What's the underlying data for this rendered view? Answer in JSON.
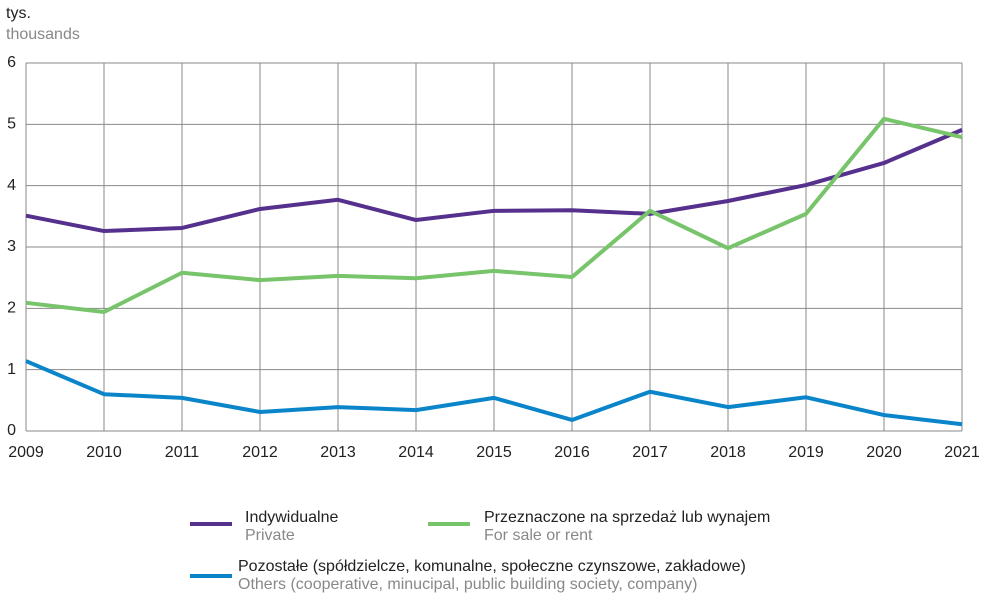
{
  "chart_data": {
    "type": "line",
    "y_label": "tys.",
    "y_label_en": "thousands",
    "categories": [
      "2009",
      "2010",
      "2011",
      "2012",
      "2013",
      "2014",
      "2015",
      "2016",
      "2017",
      "2018",
      "2019",
      "2020",
      "2021"
    ],
    "series": [
      {
        "name": "Indywidualne",
        "name_en": "Private",
        "color": "#55308d",
        "values": [
          3.51,
          3.26,
          3.31,
          3.62,
          3.77,
          3.44,
          3.59,
          3.6,
          3.54,
          3.75,
          4.01,
          4.37,
          4.91
        ]
      },
      {
        "name": "Przeznaczone na sprzedaż lub wynajem",
        "name_en": "For sale or rent",
        "color": "#77c46a",
        "values": [
          2.09,
          1.94,
          2.58,
          2.46,
          2.53,
          2.49,
          2.61,
          2.51,
          3.59,
          2.98,
          3.54,
          5.09,
          4.79
        ]
      },
      {
        "name": "Pozostałe (spółdzielcze, komunalne, społeczne czynszowe, zakładowe)",
        "name_en": "Others (cooperative, minucipal, public building society, company)",
        "color": "#0a85c9",
        "values": [
          1.14,
          0.6,
          0.54,
          0.31,
          0.39,
          0.34,
          0.54,
          0.18,
          0.64,
          0.39,
          0.55,
          0.26,
          0.11
        ]
      }
    ],
    "ylim": [
      0,
      6
    ],
    "yticks": [
      0,
      1,
      2,
      3,
      4,
      5,
      6
    ],
    "grid": true
  }
}
